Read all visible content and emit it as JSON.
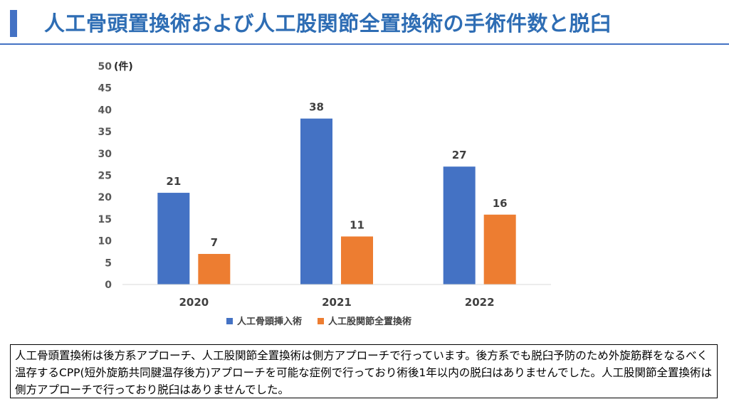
{
  "header": {
    "title": "人工骨頭置換術および人工股関節全置換術の手術件数と脱臼"
  },
  "chart_data": {
    "type": "bar",
    "categories": [
      "2020",
      "2021",
      "2022"
    ],
    "series": [
      {
        "name": "人工骨頭挿入術",
        "values": [
          21,
          38,
          27
        ],
        "color": "#4472C4"
      },
      {
        "name": "人工股関節全置換術",
        "values": [
          7,
          11,
          16
        ],
        "color": "#ED7D31"
      }
    ],
    "title": "",
    "xlabel": "",
    "ylabel": "",
    "yunit": "(件)",
    "ylim": [
      0,
      50
    ],
    "yticks": [
      0,
      5,
      10,
      15,
      20,
      25,
      30,
      35,
      40,
      45,
      50
    ],
    "grid": false,
    "legend": "bottom",
    "data_labels": true
  },
  "note": {
    "text": "人工骨頭置換術は後方系アプローチ、人工股関節全置換術は側方アプローチで行っています。後方系でも脱臼予防のため外旋筋群をなるべく温存するCPP(短外旋筋共同腱温存後方)アプローチを可能な症例で行っており術後1年以内の脱臼はありませんでした。人工股関節全置換術は側方アプローチで行っており脱臼はありませんでした。"
  }
}
